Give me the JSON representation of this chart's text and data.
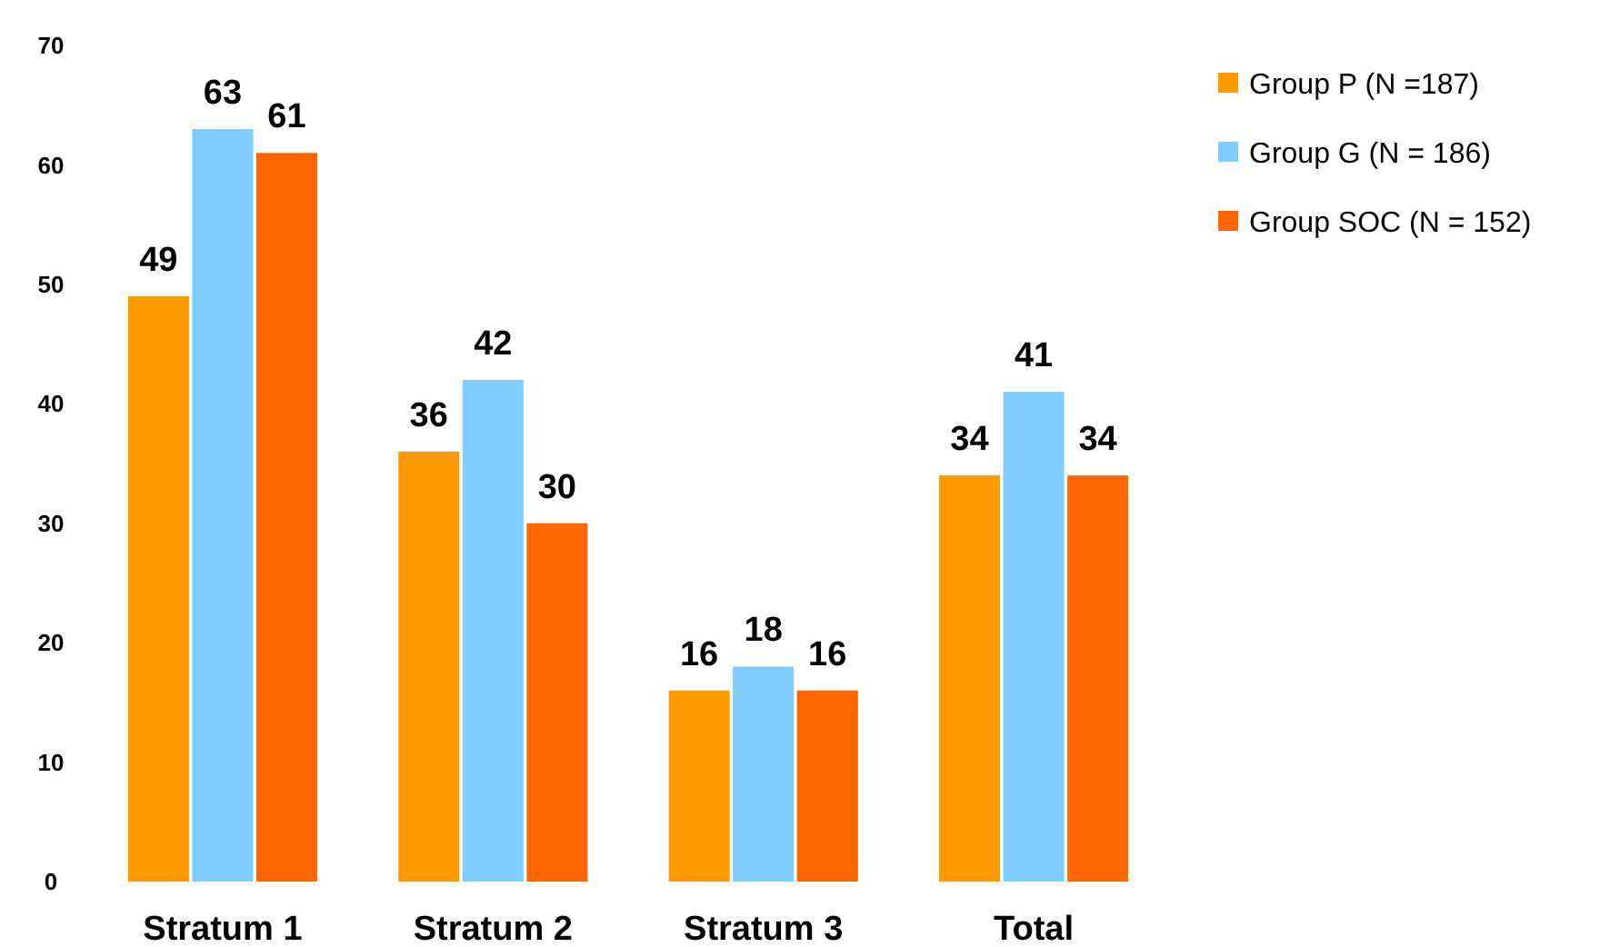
{
  "chart_data": {
    "type": "bar",
    "categories": [
      "Stratum 1",
      "Stratum 2",
      "Stratum 3",
      "Total"
    ],
    "series": [
      {
        "name": "Group P (N =187)",
        "color": "#ff9900",
        "values": [
          49,
          36,
          16,
          34
        ]
      },
      {
        "name": "Group G (N = 186)",
        "color": "#80ccff",
        "values": [
          63,
          42,
          18,
          41
        ]
      },
      {
        "name": "Group SOC (N = 152)",
        "color": "#ff6600",
        "values": [
          61,
          30,
          16,
          34
        ]
      }
    ],
    "ylim": [
      0,
      70
    ],
    "yticks": [
      0,
      10,
      20,
      30,
      40,
      50,
      60,
      70
    ],
    "grid": false,
    "legend": "top right",
    "data_labels": true
  }
}
